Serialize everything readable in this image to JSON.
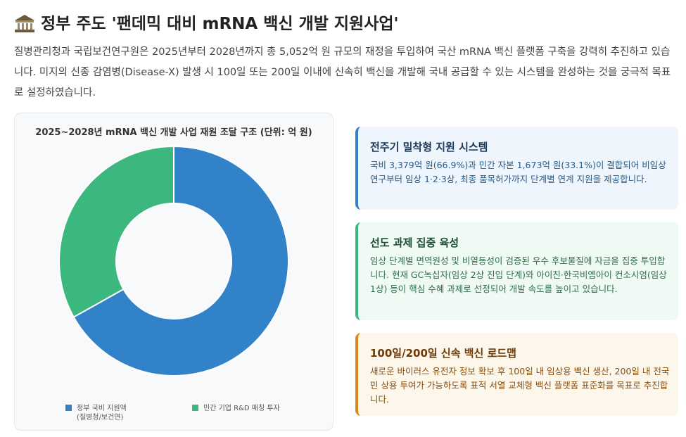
{
  "header": {
    "title": "정부 주도 '팬데믹 대비 mRNA 백신 개발 지원사업'",
    "intro": "질병관리청과 국립보건연구원은 2025년부터 2028년까지 총 5,052억 원 규모의 재정을 투입하여 국산 mRNA 백신 플랫폼 구축을 강력히 추진하고 있습니다. 미지의 신종 감염병(Disease-X) 발생 시 100일 또는 200일 이내에 신속히 백신을 개발해 국내 공급할 수 있는 시스템을 완성하는 것을 궁극적 목표로 설정하였습니다."
  },
  "chart_data": {
    "type": "donut",
    "title": "2025~2028년 mRNA 백신 개발 사업 재원 조달 구조 (단위: 억 원)",
    "categories": [
      "정부 국비 지원액 (질병청/보건연)",
      "민간 기업 R&D 매칭 투자"
    ],
    "values": [
      3379,
      1673
    ],
    "colors": [
      "#3182c8",
      "#3cb87f"
    ],
    "legend": "bottom"
  },
  "cards": [
    {
      "title": "전주기 밀착형 지원 시스템",
      "text": "국비 3,379억 원(66.9%)과 민간 자본 1,673억 원(33.1%)이 결합되어 비임상 연구부터 임상 1·2·3상, 최종 품목허가까지 단계별 연계 지원을 제공합니다."
    },
    {
      "title": "선도 과제 집중 육성",
      "text": "임상 단계별 면역원성 및 비열등성이 검증된 우수 후보물질에 자금을 집중 투입합니다. 현재 GC녹십자(임상 2상 진입 단계)와 아이진·한국비엠아이 컨소시엄(임상 1상) 등이 핵심 수혜 과제로 선정되어 개발 속도를 높이고 있습니다."
    },
    {
      "title": "100일/200일 신속 백신 로드맵",
      "text": "새로운 바이러스 유전자 정보 확보 후 100일 내 임상용 백신 생산, 200일 내 전국민 상용 투여가 가능하도록 표적 서열 교체형 백신 플랫폼 표준화를 목표로 추진합니다."
    }
  ]
}
